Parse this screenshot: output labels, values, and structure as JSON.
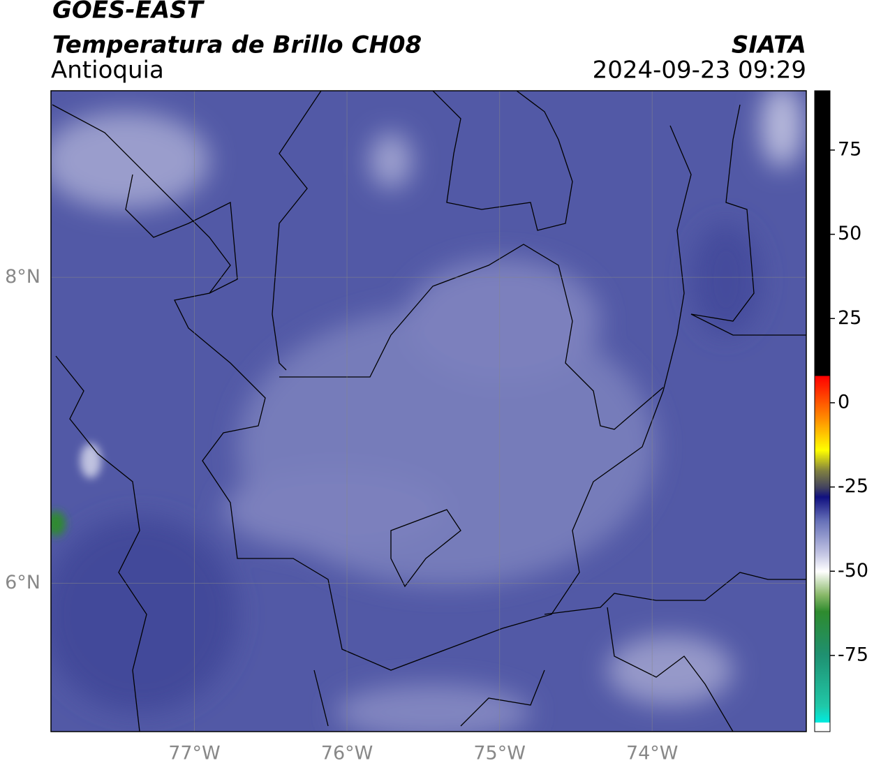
{
  "header": {
    "satellite": "GOES-EAST",
    "product": "Temperatura de Brillo CH08",
    "region": "Antioquia",
    "agency": "SIATA",
    "datetime": "2024-09-23 09:29"
  },
  "map": {
    "xlim": [
      -77.94,
      -72.99
    ],
    "ylim": [
      5.03,
      9.22
    ],
    "xticks": [
      {
        "value": -77,
        "label": "77°W"
      },
      {
        "value": -76,
        "label": "76°W"
      },
      {
        "value": -75,
        "label": "75°W"
      },
      {
        "value": -74,
        "label": "74°W"
      }
    ],
    "yticks": [
      {
        "value": 6,
        "label": "6°N"
      },
      {
        "value": 8,
        "label": "8°N"
      }
    ],
    "grid": true
  },
  "colorbar": {
    "lim": [
      -97.6,
      92.6
    ],
    "ticks": [
      -75,
      -50,
      -25,
      0,
      25,
      50,
      75
    ]
  }
}
